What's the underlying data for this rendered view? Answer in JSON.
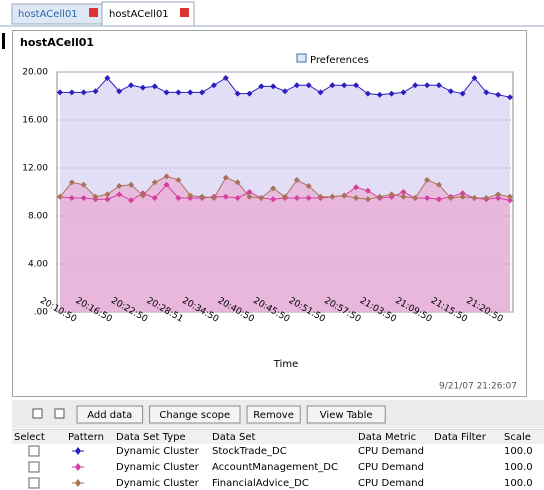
{
  "tabs": [
    "hostACell01",
    "hostACell01"
  ],
  "panel_title": "hostACell01",
  "preferences": "Preferences",
  "timestamp": "9/21/07 21:26:07",
  "buttons": [
    "Add data",
    "Change scope",
    "Remove",
    "View Table"
  ],
  "table": {
    "columns": [
      "Select",
      "Pattern",
      "Data Set Type",
      "Data Set",
      "Data Metric",
      "Data Filter",
      "Scale"
    ],
    "rows": [
      [
        "Dynamic Cluster",
        "CPU Demand",
        "100.0"
      ],
      [
        "Dynamic Cluster",
        "CPU Demand",
        "100.0"
      ],
      [
        "Dynamic Cluster",
        "CPU Demand",
        "100.0"
      ]
    ]
  },
  "chart_data": {
    "type": "area",
    "x_label": "Time",
    "categories": [
      null,
      "20:10:50",
      null,
      null,
      "20:16:50",
      null,
      null,
      "20:22:50",
      null,
      null,
      "20:28:51",
      null,
      null,
      "20:34:50",
      null,
      null,
      "20:40:50",
      null,
      null,
      "20:45:50",
      null,
      null,
      "20:51:50",
      null,
      null,
      "20:57:50",
      null,
      null,
      "21:03:50",
      null,
      null,
      "21:09:50",
      null,
      null,
      "21:15:50",
      null,
      null,
      "21:20:50",
      null
    ],
    "ylim": [
      0,
      20
    ],
    "yticks": [
      {
        "value": 0,
        "label": ".00"
      },
      {
        "value": 4,
        "label": "4.00"
      },
      {
        "value": 8,
        "label": "8.00"
      },
      {
        "value": 12,
        "label": "12.00"
      },
      {
        "value": 16,
        "label": "16.00"
      },
      {
        "value": 20,
        "label": "20.00"
      }
    ],
    "grid": true,
    "series": [
      {
        "name": "StockTrade_DC",
        "color": "#2b1fbf",
        "fill": "#e2def6",
        "values": [
          18.3,
          18.3,
          18.3,
          18.4,
          19.5,
          18.4,
          18.9,
          18.7,
          18.8,
          18.3,
          18.3,
          18.3,
          18.3,
          18.9,
          19.5,
          18.2,
          18.2,
          18.8,
          18.8,
          18.4,
          18.9,
          18.9,
          18.3,
          18.9,
          18.9,
          18.9,
          18.2,
          18.1,
          18.2,
          18.3,
          18.9,
          18.9,
          18.9,
          18.4,
          18.2,
          19.5,
          18.3,
          18.1,
          17.9
        ]
      },
      {
        "name": "AccountManagement_DC",
        "color": "#d63fa0",
        "fill": "#e9b6da",
        "values": [
          9.6,
          9.5,
          9.5,
          9.4,
          9.4,
          9.8,
          9.3,
          9.9,
          9.5,
          10.6,
          9.5,
          9.5,
          9.5,
          9.6,
          9.6,
          9.5,
          10.0,
          9.5,
          9.4,
          9.5,
          9.5,
          9.5,
          9.5,
          9.6,
          9.7,
          10.4,
          10.1,
          9.5,
          9.6,
          10.0,
          9.5,
          9.5,
          9.4,
          9.6,
          9.9,
          9.5,
          9.4,
          9.5,
          9.3
        ]
      },
      {
        "name": "FinancialAdvice_DC",
        "color": "#a9735a",
        "fill": "#e9b6da",
        "values": [
          9.6,
          10.8,
          10.6,
          9.6,
          9.8,
          10.5,
          10.6,
          9.7,
          10.8,
          11.3,
          11.0,
          9.7,
          9.6,
          9.5,
          11.2,
          10.8,
          9.6,
          9.5,
          10.3,
          9.6,
          11.0,
          10.5,
          9.6,
          9.6,
          9.7,
          9.5,
          9.4,
          9.6,
          9.8,
          9.6,
          9.5,
          11.0,
          10.6,
          9.5,
          9.6,
          9.5,
          9.5,
          9.8,
          9.6
        ]
      }
    ]
  }
}
